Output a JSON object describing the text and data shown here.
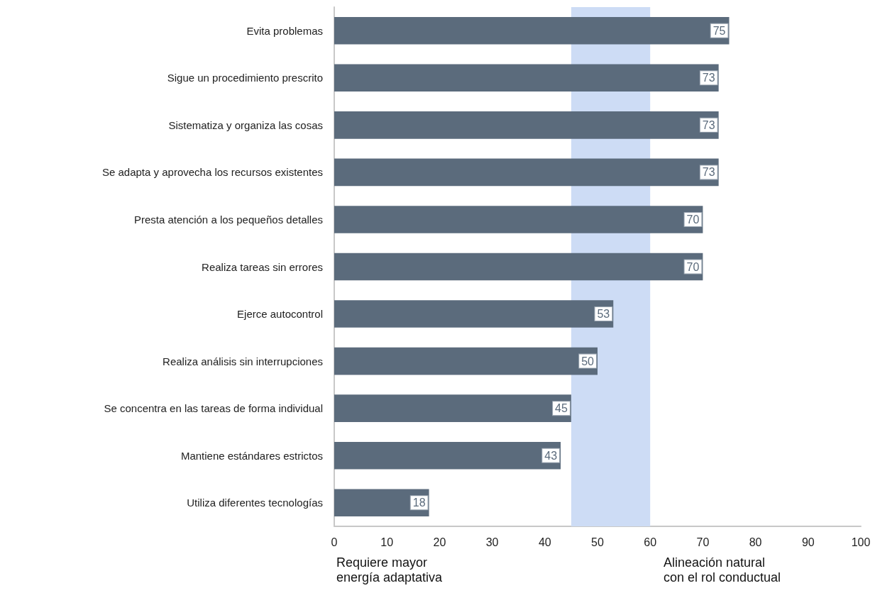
{
  "chart_data": {
    "type": "bar",
    "orientation": "horizontal",
    "categories": [
      "Evita problemas",
      "Sigue un procedimiento prescrito",
      "Sistematiza y organiza las cosas",
      "Se adapta y aprovecha los recursos existentes",
      "Presta atención a los pequeños detalles",
      "Realiza tareas sin errores",
      "Ejerce autocontrol",
      "Realiza análisis sin interrupciones",
      "Se concentra en las tareas de forma individual",
      "Mantiene estándares estrictos",
      "Utiliza diferentes tecnologías"
    ],
    "values": [
      75,
      73,
      73,
      73,
      70,
      70,
      53,
      50,
      45,
      43,
      18
    ],
    "color": "#5b6b7c",
    "xlim": [
      0,
      100
    ],
    "xticks": [
      0,
      10,
      20,
      30,
      40,
      50,
      60,
      70,
      80,
      90,
      100
    ],
    "data_labels": true,
    "grid": false,
    "bands": [
      {
        "axis": "x",
        "from": 45,
        "to": 60,
        "color": "#cddcf5"
      }
    ],
    "annotations": [
      "Requiere mayor\nenergía adaptativa",
      "Alineación natural\ncon el rol conductual"
    ]
  }
}
